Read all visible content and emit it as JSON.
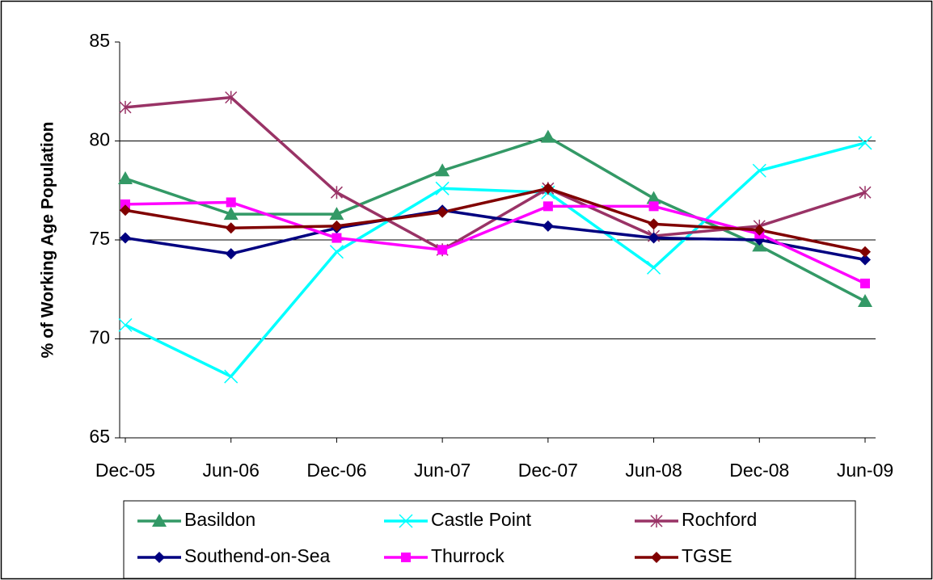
{
  "chart_data": {
    "type": "line",
    "y_label": "% of Working Age Population",
    "categories": [
      "Dec-05",
      "Jun-06",
      "Dec-06",
      "Jun-07",
      "Dec-07",
      "Jun-08",
      "Dec-08",
      "Jun-09"
    ],
    "ylim": [
      65,
      85
    ],
    "yticks": [
      65,
      70,
      75,
      80,
      85
    ],
    "grid": true,
    "legend": "bottom",
    "series": [
      {
        "name": "Basildon",
        "color": "#339966",
        "marker": "triangle",
        "values": [
          78.1,
          76.3,
          76.3,
          78.5,
          80.2,
          77.1,
          74.7,
          71.9
        ]
      },
      {
        "name": "Castle Point",
        "color": "#00ffff",
        "marker": "x",
        "values": [
          70.7,
          68.1,
          74.4,
          77.6,
          77.4,
          73.6,
          78.5,
          79.9
        ]
      },
      {
        "name": "Rochford",
        "color": "#993366",
        "marker": "star",
        "values": [
          81.7,
          82.2,
          77.4,
          74.5,
          77.6,
          75.2,
          75.7,
          77.4
        ]
      },
      {
        "name": "Southend-on-Sea",
        "color": "#000080",
        "marker": "diamond",
        "values": [
          75.1,
          74.3,
          75.6,
          76.5,
          75.7,
          75.1,
          75.0,
          74.0
        ]
      },
      {
        "name": "Thurrock",
        "color": "#ff00ff",
        "marker": "square",
        "values": [
          76.8,
          76.9,
          75.1,
          74.5,
          76.7,
          76.7,
          75.3,
          72.8
        ]
      },
      {
        "name": "TGSE",
        "color": "#800000",
        "marker": "diamond",
        "values": [
          76.5,
          75.6,
          75.7,
          76.4,
          77.6,
          75.8,
          75.5,
          74.4
        ]
      }
    ]
  }
}
